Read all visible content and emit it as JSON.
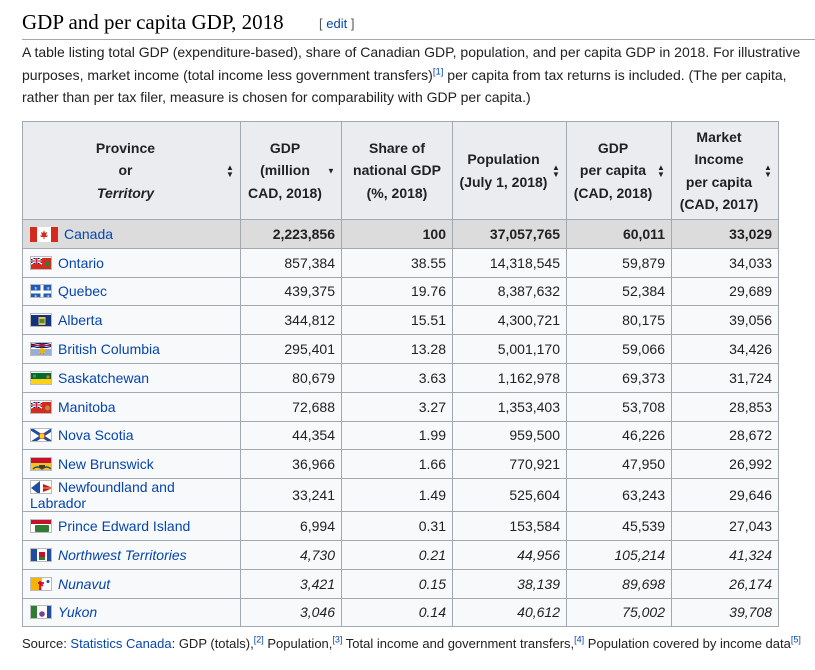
{
  "section": {
    "title": "GDP and per capita GDP, 2018",
    "edit_bracket_open": "[ ",
    "edit_label": "edit",
    "edit_bracket_close": " ]"
  },
  "intro": {
    "part1": "A table listing total GDP (expenditure-based), share of Canadian GDP, population, and per capita GDP in 2018. For illustrative purposes, market income (total income less government transfers)",
    "ref1": "[1]",
    "part2": " per capita from tax returns is included. (The per capita, rather than per tax filer, measure is chosen for comparability with GDP per capita.)"
  },
  "table": {
    "headers": [
      {
        "line1": "Province",
        "line2": "or",
        "line3": "Territory"
      },
      {
        "line1": "GDP",
        "line2": "(million",
        "line3": "CAD, 2018)"
      },
      {
        "line1": "Share of",
        "line2": "national GDP",
        "line3": "(%, 2018)"
      },
      {
        "line1": "Population",
        "line2": "(July 1, 2018)",
        "line3": ""
      },
      {
        "line1": "GDP",
        "line2": "per capita",
        "line3": "(CAD, 2018)"
      },
      {
        "line1": "Market",
        "line2": "Income",
        "line3": "per capita",
        "line4": "(CAD, 2017)"
      }
    ],
    "sort_up": "▲",
    "sort_down": "▼",
    "rows": [
      {
        "name": "Canada",
        "flag": "canada-flag-icon",
        "gdp": "2,223,856",
        "share": "100",
        "pop": "37,057,765",
        "gdppc": "60,011",
        "mkt": "33,029"
      },
      {
        "name": "Ontario",
        "flag": "ontario-flag-icon",
        "gdp": "857,384",
        "share": "38.55",
        "pop": "14,318,545",
        "gdppc": "59,879",
        "mkt": "34,033"
      },
      {
        "name": "Quebec",
        "flag": "quebec-flag-icon",
        "gdp": "439,375",
        "share": "19.76",
        "pop": "8,387,632",
        "gdppc": "52,384",
        "mkt": "29,689"
      },
      {
        "name": "Alberta",
        "flag": "alberta-flag-icon",
        "gdp": "344,812",
        "share": "15.51",
        "pop": "4,300,721",
        "gdppc": "80,175",
        "mkt": "39,056"
      },
      {
        "name": "British Columbia",
        "flag": "british-columbia-flag-icon",
        "gdp": "295,401",
        "share": "13.28",
        "pop": "5,001,170",
        "gdppc": "59,066",
        "mkt": "34,426"
      },
      {
        "name": "Saskatchewan",
        "flag": "saskatchewan-flag-icon",
        "gdp": "80,679",
        "share": "3.63",
        "pop": "1,162,978",
        "gdppc": "69,373",
        "mkt": "31,724"
      },
      {
        "name": "Manitoba",
        "flag": "manitoba-flag-icon",
        "gdp": "72,688",
        "share": "3.27",
        "pop": "1,353,403",
        "gdppc": "53,708",
        "mkt": "28,853"
      },
      {
        "name": "Nova Scotia",
        "flag": "nova-scotia-flag-icon",
        "gdp": "44,354",
        "share": "1.99",
        "pop": "959,500",
        "gdppc": "46,226",
        "mkt": "28,672"
      },
      {
        "name": "New Brunswick",
        "flag": "new-brunswick-flag-icon",
        "gdp": "36,966",
        "share": "1.66",
        "pop": "770,921",
        "gdppc": "47,950",
        "mkt": "26,992"
      },
      {
        "name": "Newfoundland and Labrador",
        "flag": "newfoundland-flag-icon",
        "gdp": "33,241",
        "share": "1.49",
        "pop": "525,604",
        "gdppc": "63,243",
        "mkt": "29,646"
      },
      {
        "name": "Prince Edward Island",
        "flag": "pei-flag-icon",
        "gdp": "6,994",
        "share": "0.31",
        "pop": "153,584",
        "gdppc": "45,539",
        "mkt": "27,043"
      },
      {
        "name": "Northwest Territories",
        "flag": "nwt-flag-icon",
        "gdp": "4,730",
        "share": "0.21",
        "pop": "44,956",
        "gdppc": "105,214",
        "mkt": "41,324"
      },
      {
        "name": "Nunavut",
        "flag": "nunavut-flag-icon",
        "gdp": "3,421",
        "share": "0.15",
        "pop": "38,139",
        "gdppc": "89,698",
        "mkt": "26,174"
      },
      {
        "name": "Yukon",
        "flag": "yukon-flag-icon",
        "gdp": "3,046",
        "share": "0.14",
        "pop": "40,612",
        "gdppc": "75,002",
        "mkt": "39,708"
      }
    ]
  },
  "source": {
    "label": "Source: ",
    "link": "Statistics Canada",
    "t1": ": GDP (totals),",
    "r2": "[2]",
    "t2": " Population,",
    "r3": "[3]",
    "t3": " Total income and government transfers,",
    "r4": "[4]",
    "t4": " Population covered by income data",
    "r5": "[5]"
  },
  "colors": {
    "link": "#0645ad",
    "header_bg": "#eaecf0",
    "row_bg": "#f8f9fa",
    "canada_row_bg": "#dcdcdc",
    "border": "#a2a9b1"
  }
}
